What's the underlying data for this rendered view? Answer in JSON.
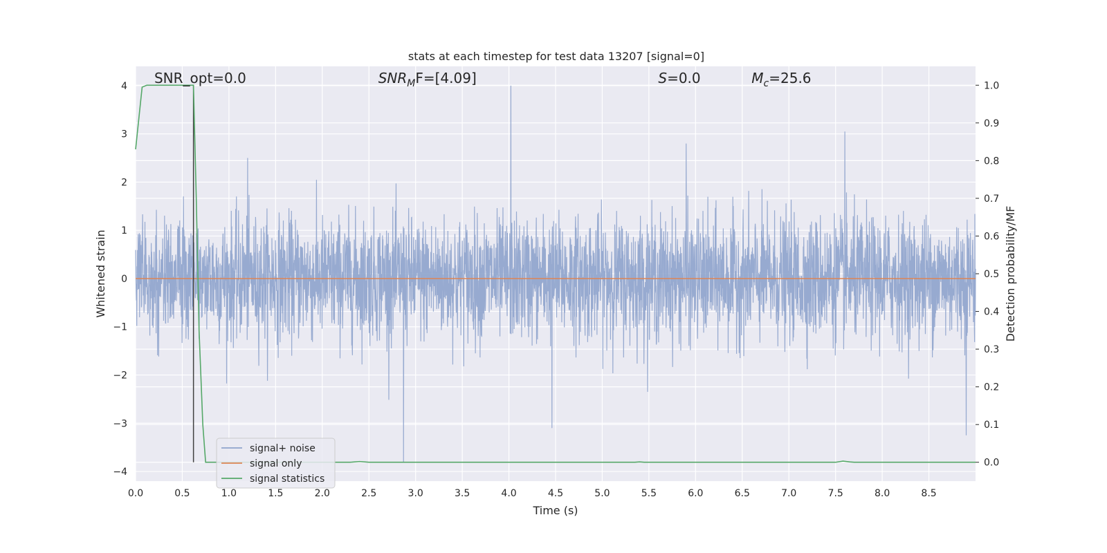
{
  "chart_data": {
    "type": "line",
    "title": "stats at each timestep for test data 13207 [signal=0]",
    "xlabel": "Time (s)",
    "ylabel": "Whitened strain",
    "y2label": "Detection probability/MF",
    "xlim": [
      0.0,
      9.0
    ],
    "ylim": [
      -4.2,
      4.4
    ],
    "y2lim": [
      -0.05,
      1.05
    ],
    "xticks": [
      "0.0",
      "0.5",
      "1.0",
      "1.5",
      "2.0",
      "2.5",
      "3.0",
      "3.5",
      "4.0",
      "4.5",
      "5.0",
      "5.5",
      "6.0",
      "6.5",
      "7.0",
      "7.5",
      "8.0",
      "8.5"
    ],
    "yticks": [
      "4",
      "3",
      "2",
      "1",
      "0",
      "−1",
      "−2",
      "−3",
      "−4"
    ],
    "y2ticks": [
      "1.0",
      "0.9",
      "0.8",
      "0.7",
      "0.6",
      "0.5",
      "0.4",
      "0.3",
      "0.2",
      "0.1",
      "0.0"
    ],
    "grid": true,
    "legend_position": "lower-left",
    "annotations": [
      {
        "text": "SNR_opt=0.0",
        "x": 0.2,
        "y": 4.1
      },
      {
        "text": "SNR",
        "sub": "M",
        "after": "F=[4.09]",
        "x": 2.6,
        "y": 4.1
      },
      {
        "text": "S",
        "after": "=0.0",
        "x": 5.6,
        "y": 4.1
      },
      {
        "text": "M",
        "sub": "c",
        "after": "=25.6",
        "x": 6.6,
        "y": 4.1
      }
    ],
    "vertical_marker": {
      "x": 0.62,
      "color": "#404040"
    },
    "series": [
      {
        "name": "signal+ noise",
        "color": "#8ea3cc",
        "axis": "left",
        "approx_envelope": {
          "typical_abs": 1.5,
          "peaks": [
            [
              4.02,
              4.0
            ],
            [
              7.6,
              3.05
            ],
            [
              2.87,
              -3.8
            ],
            [
              8.9,
              -3.25
            ],
            [
              4.46,
              -3.1
            ],
            [
              5.9,
              2.8
            ],
            [
              1.2,
              2.5
            ]
          ]
        }
      },
      {
        "name": "signal only",
        "color": "#dd8452",
        "axis": "left",
        "points": [
          [
            0.0,
            0.0
          ],
          [
            9.0,
            0.0
          ]
        ]
      },
      {
        "name": "signal statistics",
        "color": "#55a868",
        "axis": "right",
        "points": [
          [
            0.0,
            0.83
          ],
          [
            0.07,
            0.995
          ],
          [
            0.12,
            1.0
          ],
          [
            0.6,
            1.0
          ],
          [
            0.62,
            1.0
          ],
          [
            0.65,
            0.7
          ],
          [
            0.68,
            0.35
          ],
          [
            0.72,
            0.1
          ],
          [
            0.75,
            0.0
          ],
          [
            2.3,
            0.0
          ],
          [
            2.4,
            0.002
          ],
          [
            2.5,
            0.0
          ],
          [
            5.35,
            0.0
          ],
          [
            5.4,
            0.001
          ],
          [
            5.45,
            0.0
          ],
          [
            7.5,
            0.0
          ],
          [
            7.58,
            0.003
          ],
          [
            7.65,
            0.001
          ],
          [
            7.7,
            0.0
          ],
          [
            9.0,
            0.0
          ]
        ]
      }
    ]
  }
}
